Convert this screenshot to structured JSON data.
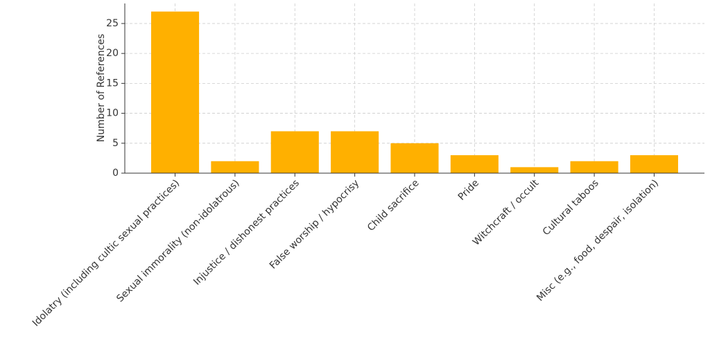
{
  "chart_data": {
    "type": "bar",
    "y_label": "Number of References",
    "categories": [
      "Idolatry (including cultic sexual practices)",
      "Sexual immorality (non-idolatrous)",
      "Injustice / dishonest practices",
      "False worship / hypocrisy",
      "Child sacrifice",
      "Pride",
      "Witchcraft / occult",
      "Cultural taboos",
      "Misc (e.g., food, despair, isolation)"
    ],
    "values": [
      27,
      2,
      7,
      7,
      5,
      3,
      1,
      2,
      3
    ],
    "color": "#ffb000",
    "ylim": [
      0,
      28.35
    ],
    "yticks": [
      0,
      5,
      10,
      15,
      20,
      25
    ],
    "grid": true
  }
}
